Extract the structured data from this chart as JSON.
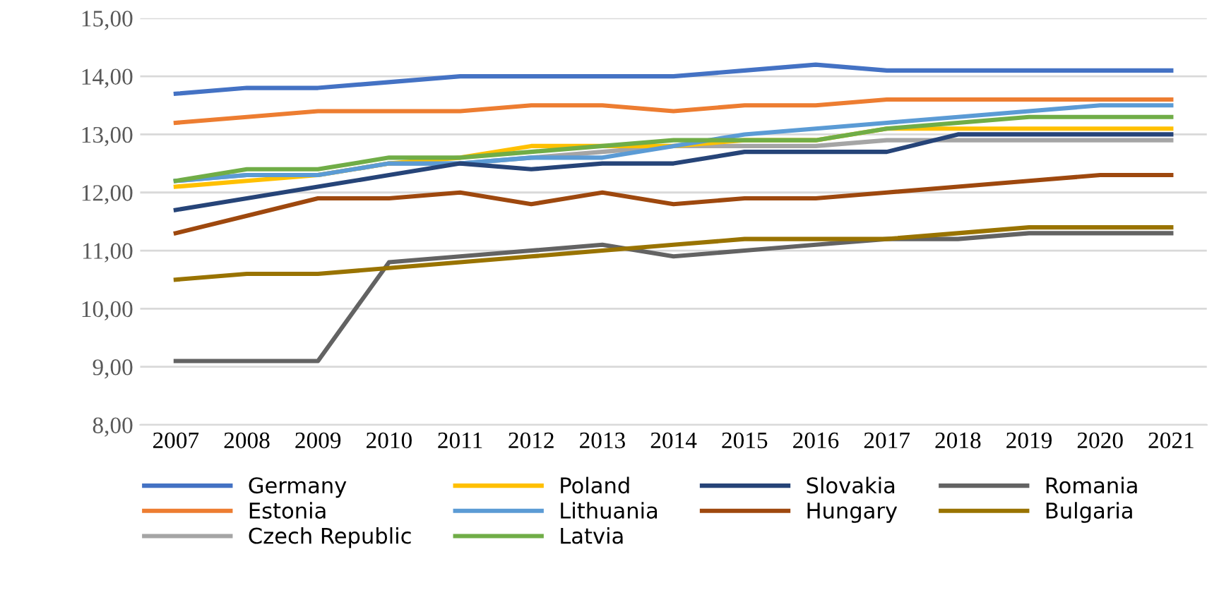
{
  "chart_data": {
    "type": "line",
    "categories": [
      "2007",
      "2008",
      "2009",
      "2010",
      "2011",
      "2012",
      "2013",
      "2014",
      "2015",
      "2016",
      "2017",
      "2018",
      "2019",
      "2020",
      "2021"
    ],
    "series": [
      {
        "name": "Germany",
        "color": "#4472c4",
        "values": [
          13.7,
          13.8,
          13.8,
          13.9,
          14.0,
          14.0,
          14.0,
          14.0,
          14.1,
          14.2,
          14.1,
          14.1,
          14.1,
          14.1,
          14.1
        ]
      },
      {
        "name": "Estonia",
        "color": "#ed7d31",
        "values": [
          13.2,
          13.3,
          13.4,
          13.4,
          13.4,
          13.5,
          13.5,
          13.4,
          13.5,
          13.5,
          13.6,
          13.6,
          13.6,
          13.6,
          13.6
        ]
      },
      {
        "name": "Czech Republic",
        "color": "#a5a5a5",
        "values": [
          12.2,
          12.3,
          12.3,
          12.5,
          12.5,
          12.6,
          12.7,
          12.8,
          12.8,
          12.8,
          12.9,
          12.9,
          12.9,
          12.9,
          12.9
        ]
      },
      {
        "name": "Poland",
        "color": "#ffc000",
        "values": [
          12.1,
          12.2,
          12.3,
          12.5,
          12.6,
          12.8,
          12.8,
          12.8,
          12.9,
          12.9,
          13.1,
          13.1,
          13.1,
          13.1,
          13.1
        ]
      },
      {
        "name": "Lithuania",
        "color": "#5b9bd5",
        "values": [
          12.2,
          12.3,
          12.3,
          12.5,
          12.5,
          12.6,
          12.6,
          12.8,
          13.0,
          13.1,
          13.2,
          13.3,
          13.4,
          13.5,
          13.5
        ]
      },
      {
        "name": "Latvia",
        "color": "#70ad47",
        "values": [
          12.2,
          12.4,
          12.4,
          12.6,
          12.6,
          12.7,
          12.8,
          12.9,
          12.9,
          12.9,
          13.1,
          13.2,
          13.3,
          13.3,
          13.3
        ]
      },
      {
        "name": "Slovakia",
        "color": "#264478",
        "values": [
          11.7,
          11.9,
          12.1,
          12.3,
          12.5,
          12.4,
          12.5,
          12.5,
          12.7,
          12.7,
          12.7,
          13.0,
          13.0,
          13.0,
          13.0
        ]
      },
      {
        "name": "Hungary",
        "color": "#9e480e",
        "values": [
          11.3,
          11.6,
          11.9,
          11.9,
          12.0,
          11.8,
          12.0,
          11.8,
          11.9,
          11.9,
          12.0,
          12.1,
          12.2,
          12.3,
          12.3
        ]
      },
      {
        "name": "Romania",
        "color": "#636363",
        "values": [
          9.1,
          9.1,
          9.1,
          10.8,
          10.9,
          11.0,
          11.1,
          10.9,
          11.0,
          11.1,
          11.2,
          11.2,
          11.3,
          11.3,
          11.3
        ]
      },
      {
        "name": "Bulgaria",
        "color": "#997300",
        "values": [
          10.5,
          10.6,
          10.6,
          10.7,
          10.8,
          10.9,
          11.0,
          11.1,
          11.2,
          11.2,
          11.2,
          11.3,
          11.4,
          11.4,
          11.4
        ]
      }
    ],
    "ylim": [
      8,
      15
    ],
    "yticks": [
      {
        "value": 8,
        "label": "8,00"
      },
      {
        "value": 9,
        "label": "9,00"
      },
      {
        "value": 10,
        "label": "10,00"
      },
      {
        "value": 11,
        "label": "11,00"
      },
      {
        "value": 12,
        "label": "12,00"
      },
      {
        "value": 13,
        "label": "13,00"
      },
      {
        "value": 14,
        "label": "14,00"
      },
      {
        "value": 15,
        "label": "15,00"
      }
    ],
    "grid": "y",
    "legend": "bottom",
    "marker": "none",
    "line_style": "solid"
  }
}
